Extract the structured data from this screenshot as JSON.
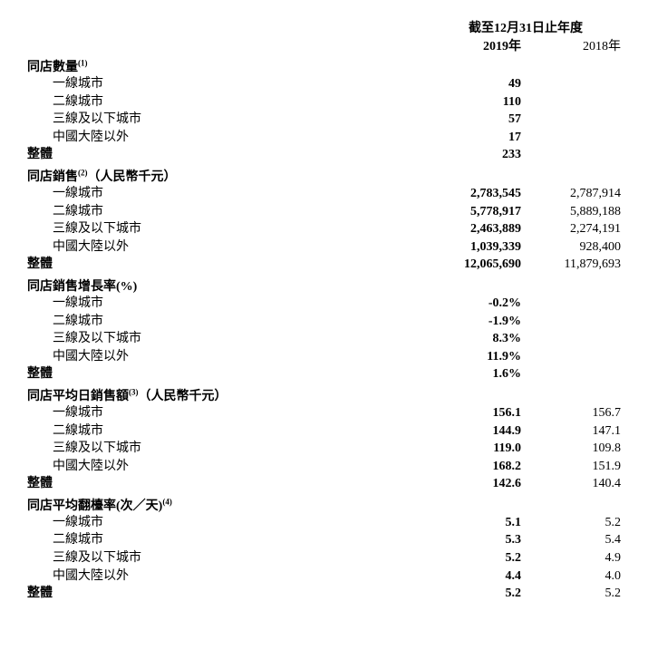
{
  "header": {
    "period": "截至12月31日止年度",
    "year2019": "2019年",
    "year2018": "2018年"
  },
  "sections": [
    {
      "title": "同店數量",
      "sup": "(1)",
      "rows": [
        {
          "label": "一線城市",
          "v2019": "49",
          "v2018": ""
        },
        {
          "label": "二線城市",
          "v2019": "110",
          "v2018": ""
        },
        {
          "label": "三線及以下城市",
          "v2019": "57",
          "v2018": ""
        },
        {
          "label": "中國大陸以外",
          "v2019": "17",
          "v2018": ""
        }
      ],
      "total": {
        "label": "整體",
        "v2019": "233",
        "v2018": ""
      }
    },
    {
      "title": "同店銷售",
      "sup": "(2)",
      "suffix": "（人民幣千元）",
      "rows": [
        {
          "label": "一線城市",
          "v2019": "2,783,545",
          "v2018": "2,787,914"
        },
        {
          "label": "二線城市",
          "v2019": "5,778,917",
          "v2018": "5,889,188"
        },
        {
          "label": "三線及以下城市",
          "v2019": "2,463,889",
          "v2018": "2,274,191"
        },
        {
          "label": "中國大陸以外",
          "v2019": "1,039,339",
          "v2018": "928,400"
        }
      ],
      "total": {
        "label": "整體",
        "v2019": "12,065,690",
        "v2018": "11,879,693"
      }
    },
    {
      "title": "同店銷售增長率(%)",
      "sup": "",
      "rows": [
        {
          "label": "一線城市",
          "v2019": "-0.2%",
          "v2018": ""
        },
        {
          "label": "二線城市",
          "v2019": "-1.9%",
          "v2018": ""
        },
        {
          "label": "三線及以下城市",
          "v2019": "8.3%",
          "v2018": ""
        },
        {
          "label": "中國大陸以外",
          "v2019": "11.9%",
          "v2018": ""
        }
      ],
      "total": {
        "label": "整體",
        "v2019": "1.6%",
        "v2018": ""
      }
    },
    {
      "title": "同店平均日銷售額",
      "sup": "(3)",
      "suffix": "（人民幣千元）",
      "rows": [
        {
          "label": "一線城市",
          "v2019": "156.1",
          "v2018": "156.7"
        },
        {
          "label": "二線城市",
          "v2019": "144.9",
          "v2018": "147.1"
        },
        {
          "label": "三線及以下城市",
          "v2019": "119.0",
          "v2018": "109.8"
        },
        {
          "label": "中國大陸以外",
          "v2019": "168.2",
          "v2018": "151.9"
        }
      ],
      "total": {
        "label": "整體",
        "v2019": "142.6",
        "v2018": "140.4"
      }
    },
    {
      "title": "同店平均翻檯率(次／天)",
      "sup": "(4)",
      "rows": [
        {
          "label": "一線城市",
          "v2019": "5.1",
          "v2018": "5.2"
        },
        {
          "label": "二線城市",
          "v2019": "5.3",
          "v2018": "5.4"
        },
        {
          "label": "三線及以下城市",
          "v2019": "5.2",
          "v2018": "4.9"
        },
        {
          "label": "中國大陸以外",
          "v2019": "4.4",
          "v2018": "4.0"
        }
      ],
      "total": {
        "label": "整體",
        "v2019": "5.2",
        "v2018": "5.2"
      }
    }
  ]
}
